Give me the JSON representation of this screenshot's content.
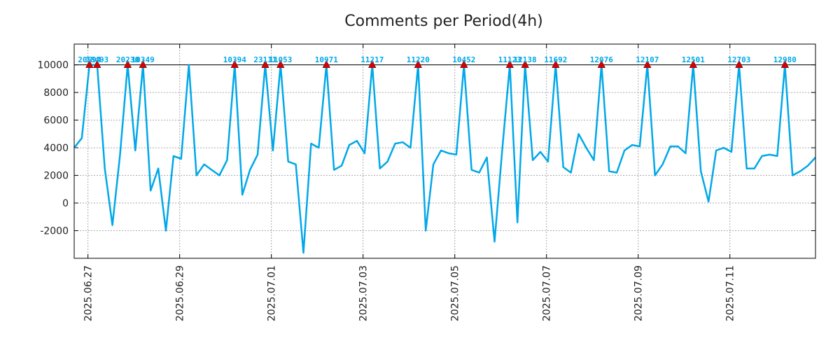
{
  "chart_data": {
    "type": "line",
    "title": "Comments per Period(4h)",
    "xlabel": "",
    "ylabel": "",
    "x_start": "2025.06.26 12:00",
    "x_step_hours": 4,
    "xlim_points": [
      0,
      97
    ],
    "ylim": [
      -4000,
      11500
    ],
    "yticks": [
      -2000,
      0,
      2000,
      4000,
      6000,
      8000,
      10000
    ],
    "cap": 10000,
    "xtick_labels": [
      "2025.06.27",
      "2025.06.29",
      "2025.07.01",
      "2025.07.03",
      "2025.07.05",
      "2025.07.07",
      "2025.07.09",
      "2025.07.11"
    ],
    "xtick_points": [
      1.8,
      13.8,
      25.8,
      37.8,
      49.8,
      61.8,
      73.8,
      85.8
    ],
    "grid": true,
    "line_color": "#00a8e8",
    "marker_color": "#dd0000",
    "series": [
      {
        "name": "Comments",
        "values": [
          4000,
          4700,
          10000,
          10000,
          2500,
          -1600,
          3500,
          10000,
          3800,
          10000,
          900,
          2500,
          -2000,
          3400,
          3200,
          10000,
          2000,
          2800,
          2400,
          2000,
          3100,
          10000,
          600,
          2400,
          3500,
          10000,
          3800,
          10000,
          3000,
          2800,
          -3600,
          4300,
          4000,
          10000,
          2400,
          2700,
          4200,
          4500,
          3600,
          10000,
          2500,
          3000,
          4300,
          4400,
          4000,
          10000,
          -2000,
          2800,
          3800,
          3600,
          3500,
          10000,
          2400,
          2200,
          3300,
          -2800,
          3800,
          10000,
          -1400,
          10000,
          3100,
          3700,
          3000,
          10000,
          2600,
          2200,
          5000,
          4000,
          3100,
          10000,
          2300,
          2200,
          3800,
          4200,
          4100,
          10000,
          2000,
          2800,
          4100,
          4100,
          3600,
          10000,
          2300,
          100,
          3800,
          4000,
          3700,
          10000,
          2500,
          2500,
          3400,
          3500,
          3400,
          10000,
          2000,
          2300,
          2700,
          3300
        ]
      }
    ],
    "peaks": [
      {
        "index": 2,
        "label": "20594"
      },
      {
        "index": 3,
        "label": "18493"
      },
      {
        "index": 7,
        "label": "20230"
      },
      {
        "index": 9,
        "label": "10349"
      },
      {
        "index": 21,
        "label": "10394"
      },
      {
        "index": 25,
        "label": "23111"
      },
      {
        "index": 27,
        "label": "11053"
      },
      {
        "index": 33,
        "label": "10971"
      },
      {
        "index": 39,
        "label": "11217"
      },
      {
        "index": 45,
        "label": "11220"
      },
      {
        "index": 51,
        "label": "10452"
      },
      {
        "index": 57,
        "label": "11123"
      },
      {
        "index": 59,
        "label": "12138"
      },
      {
        "index": 63,
        "label": "11692"
      },
      {
        "index": 69,
        "label": "12076"
      },
      {
        "index": 75,
        "label": "12107"
      },
      {
        "index": 81,
        "label": "12501"
      },
      {
        "index": 87,
        "label": "12703"
      },
      {
        "index": 93,
        "label": "12980"
      }
    ]
  }
}
